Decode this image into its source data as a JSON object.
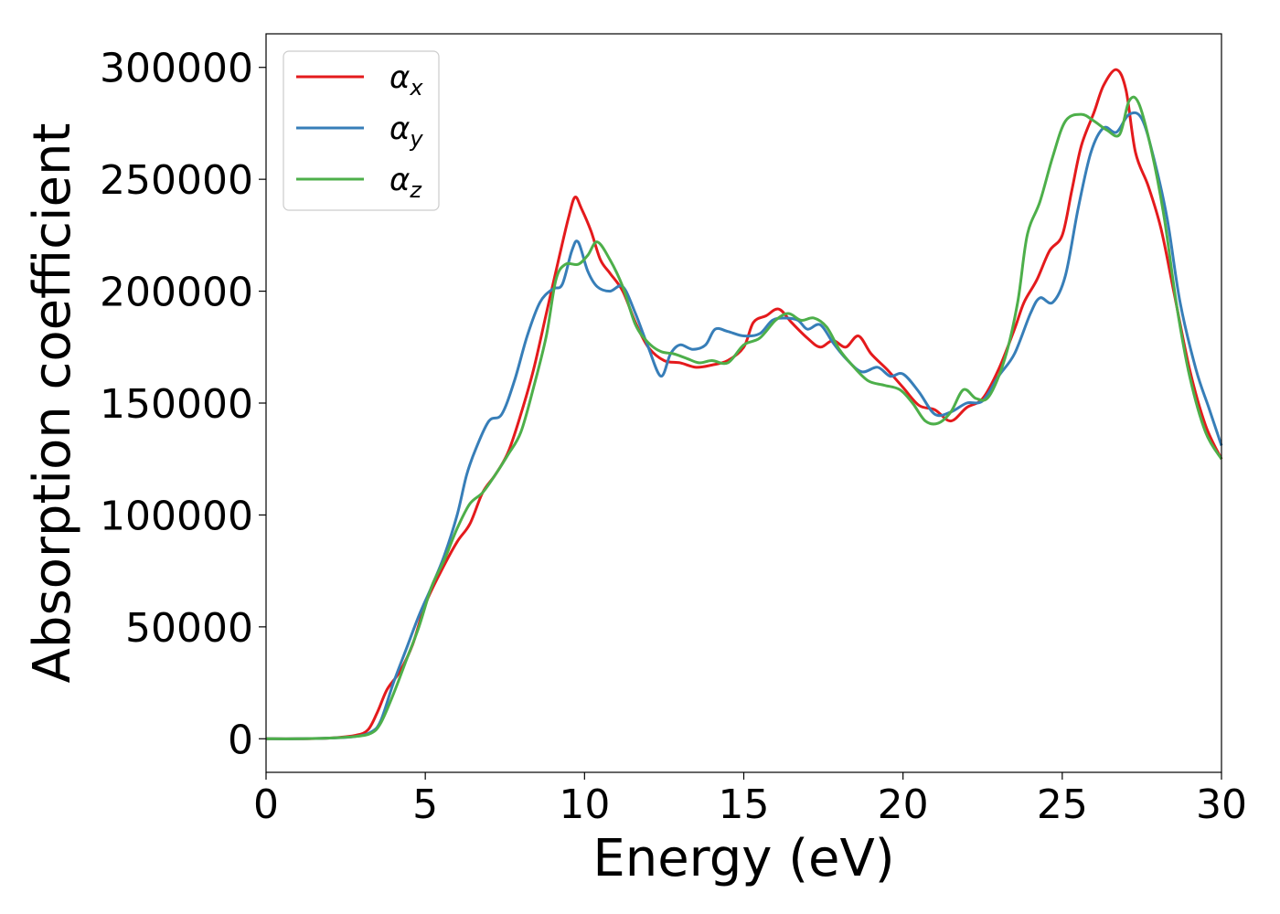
{
  "chart_data": {
    "type": "line",
    "title": "",
    "xlabel": "Energy (eV)",
    "ylabel": "Absorption coefficient",
    "xlim": [
      0,
      30
    ],
    "ylim": [
      -15000,
      315000
    ],
    "xticks": [
      0,
      5,
      10,
      15,
      20,
      25,
      30
    ],
    "xtick_labels": [
      "0",
      "5",
      "10",
      "15",
      "20",
      "25",
      "30"
    ],
    "yticks": [
      0,
      50000,
      100000,
      150000,
      200000,
      250000,
      300000
    ],
    "ytick_labels": [
      "0",
      "50000",
      "100000",
      "150000",
      "200000",
      "250000",
      "300000"
    ],
    "grid": false,
    "legend_position": "top-left",
    "series": [
      {
        "name": "αx",
        "label_main": "α",
        "label_sub": "x",
        "color": "#e41a1c",
        "points": [
          [
            0,
            0
          ],
          [
            1,
            0
          ],
          [
            2,
            300
          ],
          [
            2.8,
            1500
          ],
          [
            3.2,
            4000
          ],
          [
            3.5,
            12000
          ],
          [
            3.8,
            22000
          ],
          [
            4.2,
            30000
          ],
          [
            4.6,
            42000
          ],
          [
            5,
            60000
          ],
          [
            5.5,
            75000
          ],
          [
            6,
            88000
          ],
          [
            6.4,
            96000
          ],
          [
            6.8,
            110000
          ],
          [
            7.2,
            118000
          ],
          [
            7.6,
            128000
          ],
          [
            8,
            145000
          ],
          [
            8.4,
            165000
          ],
          [
            8.8,
            190000
          ],
          [
            9.2,
            215000
          ],
          [
            9.5,
            233000
          ],
          [
            9.7,
            242000
          ],
          [
            9.9,
            237000
          ],
          [
            10.2,
            227000
          ],
          [
            10.5,
            214000
          ],
          [
            10.8,
            208000
          ],
          [
            11.2,
            200000
          ],
          [
            11.6,
            186000
          ],
          [
            12,
            175000
          ],
          [
            12.5,
            169000
          ],
          [
            13,
            168000
          ],
          [
            13.5,
            166000
          ],
          [
            14,
            167000
          ],
          [
            14.5,
            169000
          ],
          [
            15,
            175000
          ],
          [
            15.3,
            186000
          ],
          [
            15.7,
            189000
          ],
          [
            16.1,
            192000
          ],
          [
            16.5,
            186000
          ],
          [
            17,
            179000
          ],
          [
            17.4,
            175000
          ],
          [
            17.8,
            178000
          ],
          [
            18.2,
            175000
          ],
          [
            18.6,
            180000
          ],
          [
            19,
            172000
          ],
          [
            19.5,
            165000
          ],
          [
            20,
            157000
          ],
          [
            20.5,
            149000
          ],
          [
            21,
            147000
          ],
          [
            21.5,
            142000
          ],
          [
            22,
            148000
          ],
          [
            22.5,
            152000
          ],
          [
            23,
            165000
          ],
          [
            23.5,
            183000
          ],
          [
            23.8,
            195000
          ],
          [
            24.2,
            205000
          ],
          [
            24.6,
            218000
          ],
          [
            25,
            225000
          ],
          [
            25.3,
            245000
          ],
          [
            25.6,
            265000
          ],
          [
            26,
            280000
          ],
          [
            26.3,
            292000
          ],
          [
            26.7,
            299000
          ],
          [
            27,
            290000
          ],
          [
            27.3,
            262000
          ],
          [
            27.7,
            247000
          ],
          [
            28.1,
            228000
          ],
          [
            28.5,
            200000
          ],
          [
            29,
            165000
          ],
          [
            29.5,
            140000
          ],
          [
            30,
            125000
          ]
        ]
      },
      {
        "name": "αy",
        "label_main": "α",
        "label_sub": "y",
        "color": "#377eb8",
        "points": [
          [
            0,
            0
          ],
          [
            1,
            0
          ],
          [
            2,
            300
          ],
          [
            2.8,
            1000
          ],
          [
            3.3,
            3000
          ],
          [
            3.6,
            8000
          ],
          [
            4,
            25000
          ],
          [
            4.4,
            40000
          ],
          [
            4.8,
            55000
          ],
          [
            5.2,
            68000
          ],
          [
            5.6,
            82000
          ],
          [
            6,
            100000
          ],
          [
            6.3,
            118000
          ],
          [
            6.6,
            130000
          ],
          [
            7,
            142000
          ],
          [
            7.4,
            145000
          ],
          [
            7.8,
            160000
          ],
          [
            8.2,
            180000
          ],
          [
            8.6,
            195000
          ],
          [
            9,
            201000
          ],
          [
            9.3,
            203000
          ],
          [
            9.6,
            218000
          ],
          [
            9.8,
            222000
          ],
          [
            10.1,
            209000
          ],
          [
            10.4,
            202000
          ],
          [
            10.8,
            200000
          ],
          [
            11.2,
            202000
          ],
          [
            11.6,
            190000
          ],
          [
            12,
            175000
          ],
          [
            12.4,
            162000
          ],
          [
            12.7,
            172000
          ],
          [
            13,
            176000
          ],
          [
            13.4,
            174000
          ],
          [
            13.8,
            176000
          ],
          [
            14.1,
            183000
          ],
          [
            14.5,
            182000
          ],
          [
            15,
            180000
          ],
          [
            15.5,
            181000
          ],
          [
            15.9,
            187000
          ],
          [
            16.3,
            188000
          ],
          [
            16.7,
            187000
          ],
          [
            17,
            183000
          ],
          [
            17.4,
            185000
          ],
          [
            17.8,
            177000
          ],
          [
            18.2,
            170000
          ],
          [
            18.7,
            164000
          ],
          [
            19.2,
            166000
          ],
          [
            19.6,
            162000
          ],
          [
            20,
            163000
          ],
          [
            20.5,
            155000
          ],
          [
            21,
            145000
          ],
          [
            21.5,
            146000
          ],
          [
            22,
            150000
          ],
          [
            22.5,
            151000
          ],
          [
            23,
            162000
          ],
          [
            23.5,
            172000
          ],
          [
            24,
            190000
          ],
          [
            24.3,
            197000
          ],
          [
            24.7,
            195000
          ],
          [
            25.1,
            207000
          ],
          [
            25.5,
            237000
          ],
          [
            25.9,
            262000
          ],
          [
            26.3,
            273000
          ],
          [
            26.7,
            271000
          ],
          [
            27.1,
            279000
          ],
          [
            27.5,
            277000
          ],
          [
            27.9,
            258000
          ],
          [
            28.3,
            232000
          ],
          [
            28.7,
            195000
          ],
          [
            29.2,
            165000
          ],
          [
            29.6,
            148000
          ],
          [
            30,
            131000
          ]
        ]
      },
      {
        "name": "αz",
        "label_main": "α",
        "label_sub": "z",
        "color": "#4daf4a",
        "points": [
          [
            0,
            0
          ],
          [
            1,
            0
          ],
          [
            2,
            300
          ],
          [
            2.8,
            1000
          ],
          [
            3.3,
            2500
          ],
          [
            3.6,
            7000
          ],
          [
            4,
            20000
          ],
          [
            4.4,
            35000
          ],
          [
            4.8,
            50000
          ],
          [
            5.2,
            68000
          ],
          [
            5.6,
            80000
          ],
          [
            6,
            94000
          ],
          [
            6.4,
            105000
          ],
          [
            6.8,
            110000
          ],
          [
            7.2,
            118000
          ],
          [
            7.6,
            127000
          ],
          [
            8,
            137000
          ],
          [
            8.4,
            157000
          ],
          [
            8.8,
            180000
          ],
          [
            9.1,
            205000
          ],
          [
            9.4,
            212000
          ],
          [
            9.8,
            212000
          ],
          [
            10.1,
            216000
          ],
          [
            10.4,
            222000
          ],
          [
            10.8,
            214000
          ],
          [
            11.2,
            202000
          ],
          [
            11.6,
            185000
          ],
          [
            12,
            177000
          ],
          [
            12.4,
            173000
          ],
          [
            12.8,
            172000
          ],
          [
            13.2,
            170000
          ],
          [
            13.6,
            168000
          ],
          [
            14,
            169000
          ],
          [
            14.5,
            168000
          ],
          [
            15,
            176000
          ],
          [
            15.5,
            179000
          ],
          [
            16,
            187000
          ],
          [
            16.4,
            190000
          ],
          [
            16.8,
            187000
          ],
          [
            17.2,
            188000
          ],
          [
            17.6,
            184000
          ],
          [
            18,
            174000
          ],
          [
            18.4,
            167000
          ],
          [
            18.9,
            160000
          ],
          [
            19.4,
            158000
          ],
          [
            19.9,
            156000
          ],
          [
            20.3,
            150000
          ],
          [
            20.7,
            142000
          ],
          [
            21.1,
            141000
          ],
          [
            21.5,
            146000
          ],
          [
            21.9,
            156000
          ],
          [
            22.3,
            152000
          ],
          [
            22.7,
            153000
          ],
          [
            23.2,
            170000
          ],
          [
            23.6,
            195000
          ],
          [
            23.9,
            225000
          ],
          [
            24.3,
            240000
          ],
          [
            24.7,
            260000
          ],
          [
            25.1,
            276000
          ],
          [
            25.6,
            279000
          ],
          [
            26,
            276000
          ],
          [
            26.4,
            272000
          ],
          [
            26.8,
            270000
          ],
          [
            27.1,
            285000
          ],
          [
            27.4,
            284000
          ],
          [
            27.8,
            263000
          ],
          [
            28.2,
            233000
          ],
          [
            28.6,
            193000
          ],
          [
            29,
            162000
          ],
          [
            29.5,
            137000
          ],
          [
            30,
            125000
          ]
        ]
      }
    ]
  }
}
